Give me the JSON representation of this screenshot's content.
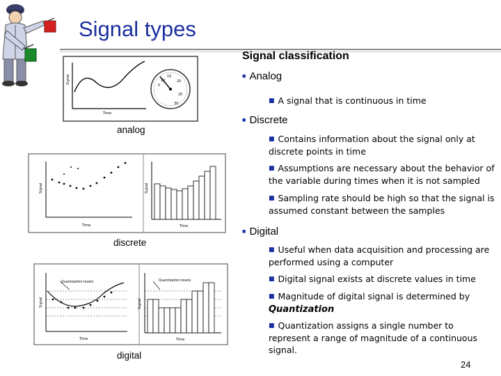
{
  "slide": {
    "title": "Signal types",
    "heading": "Signal classification",
    "page_number": "24"
  },
  "captions": {
    "analog": "analog",
    "discrete": "discrete",
    "digital": "digital"
  },
  "figure_labels": {
    "signal": "Signal",
    "time": "Time",
    "quantization_levels": "Quantization levels"
  },
  "bullets": {
    "analog": "Analog",
    "analog_def": "A signal that is continuous in time",
    "discrete": "Discrete",
    "discrete_1": "Contains information about the signal only at discrete points in time",
    "discrete_2": "Assumptions are necessary about the behavior of the variable during times when it is not sampled",
    "discrete_3": "Sampling rate should be high so that the signal is assumed constant between the samples",
    "digital": "Digital",
    "digital_1": "Useful when data acquisition and processing are performed using a computer",
    "digital_2": "Digital signal exists at discrete values in time",
    "digital_3_text": "Magnitude of digital signal is determined by",
    "digital_3_emph": "Quantization",
    "digital_4": "Quantization assigns a single number to represent a range of magnitude of a continuous signal."
  },
  "colors": {
    "title": "#1a2fa0",
    "bullet": "#1a2fa0",
    "flag_red": "#d62020",
    "flag_green": "#1a8a2a"
  }
}
